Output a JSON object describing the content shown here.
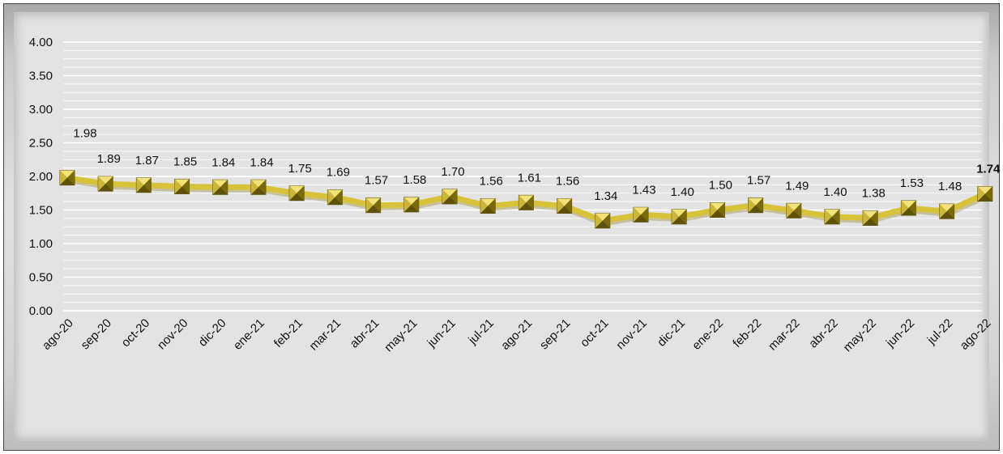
{
  "chart_data": {
    "type": "line",
    "title": "",
    "xlabel": "",
    "ylabel": "",
    "ylim": [
      0,
      4
    ],
    "y_ticks": [
      "0.00",
      "0.50",
      "1.00",
      "1.50",
      "2.00",
      "2.50",
      "3.00",
      "3.50",
      "4.00"
    ],
    "grid": true,
    "legend": "none",
    "categories": [
      "ago-20",
      "sep-20",
      "oct-20",
      "nov-20",
      "dic-20",
      "ene-21",
      "feb-21",
      "mar-21",
      "abr-21",
      "may-21",
      "jun-21",
      "jul-21",
      "ago-21",
      "sep-21",
      "oct-21",
      "nov-21",
      "dic-21",
      "ene-22",
      "feb-22",
      "mar-22",
      "abr-22",
      "may-22",
      "jun-22",
      "jul-22",
      "ago-22"
    ],
    "values": [
      1.98,
      1.89,
      1.87,
      1.85,
      1.84,
      1.84,
      1.75,
      1.69,
      1.57,
      1.58,
      1.7,
      1.56,
      1.61,
      1.56,
      1.34,
      1.43,
      1.4,
      1.5,
      1.57,
      1.49,
      1.4,
      1.38,
      1.53,
      1.48,
      1.74
    ],
    "data_labels": [
      "1.98",
      "1.89",
      "1.87",
      "1.85",
      "1.84",
      "1.84",
      "1.75",
      "1.69",
      "1.57",
      "1.58",
      "1.70",
      "1.56",
      "1.61",
      "1.56",
      "1.34",
      "1.43",
      "1.40",
      "1.50",
      "1.57",
      "1.49",
      "1.40",
      "1.38",
      "1.53",
      "1.48",
      "1.74"
    ],
    "emphasized_label_index": 24,
    "colors": {
      "line": "#d8c23a",
      "marker": "#9c8a14",
      "marker_highlight": "#f2e27a",
      "grid": "#ffffff",
      "background": "#e3e3e3"
    }
  }
}
